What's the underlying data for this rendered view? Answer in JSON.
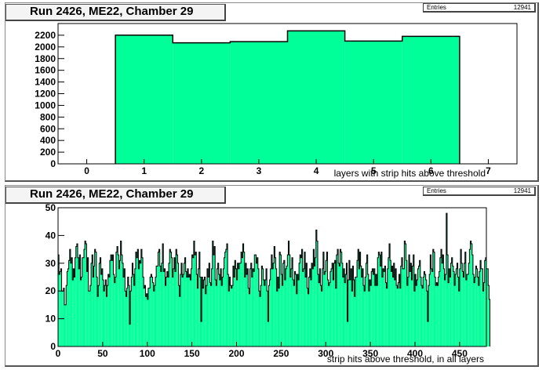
{
  "colors": {
    "fill": "#00ff99",
    "line": "#000000",
    "frame": "#000000"
  },
  "panels": [
    {
      "title": "Run 2426, ME22, Chamber 29",
      "stats": {
        "label": "Entries",
        "value": "12941"
      },
      "chart_data": {
        "type": "bar",
        "xlabel": "layers with strip hits above threshold",
        "xlim": [
          -0.5,
          7.5
        ],
        "ylim": [
          0,
          2400
        ],
        "xticks": [
          0,
          1,
          2,
          3,
          4,
          5,
          6,
          7
        ],
        "yticks": [
          0,
          200,
          400,
          600,
          800,
          1000,
          1200,
          1400,
          1600,
          1800,
          2000,
          2200
        ],
        "categories": [
          1,
          2,
          3,
          4,
          5,
          6
        ],
        "values": [
          2200,
          2070,
          2090,
          2275,
          2100,
          2180
        ],
        "bin_width": 1
      }
    },
    {
      "title": "Run 2426, ME22, Chamber 29",
      "stats": {
        "label": "Entries",
        "value": "12941"
      },
      "chart_data": {
        "type": "bar",
        "xlabel": "strip hits above threshold, in all layers",
        "xlim": [
          0,
          480
        ],
        "ylim": [
          0,
          50
        ],
        "xticks": [
          0,
          50,
          100,
          150,
          200,
          250,
          300,
          350,
          400,
          450
        ],
        "yticks": [
          0,
          10,
          20,
          30,
          40,
          50
        ],
        "bin_width": 1,
        "values": [
          33,
          26,
          27,
          28,
          20,
          20,
          21,
          15,
          15,
          22,
          27,
          28,
          31,
          35,
          30,
          32,
          24,
          28,
          25,
          32,
          36,
          37,
          32,
          28,
          33,
          24,
          25,
          32,
          32,
          35,
          38,
          37,
          27,
          32,
          20,
          20,
          22,
          30,
          33,
          25,
          29,
          35,
          34,
          25,
          18,
          22,
          30,
          32,
          26,
          28,
          24,
          20,
          22,
          24,
          18,
          22,
          26,
          25,
          31,
          33,
          31,
          33,
          26,
          23,
          25,
          34,
          36,
          33,
          28,
          31,
          38,
          33,
          30,
          25,
          28,
          20,
          18,
          21,
          25,
          22,
          8,
          20,
          25,
          30,
          26,
          22,
          28,
          34,
          32,
          35,
          28,
          31,
          30,
          35,
          32,
          25,
          21,
          22,
          18,
          19,
          17,
          21,
          21,
          25,
          26,
          25,
          23,
          20,
          22,
          25,
          29,
          29,
          34,
          35,
          29,
          27,
          30,
          37,
          27,
          28,
          22,
          25,
          27,
          25,
          30,
          35,
          34,
          32,
          25,
          28,
          32,
          27,
          35,
          33,
          30,
          22,
          18,
          26,
          30,
          25,
          26,
          30,
          32,
          27,
          25,
          28,
          25,
          26,
          24,
          28,
          33,
          32,
          38,
          33,
          34,
          26,
          21,
          28,
          34,
          25,
          9,
          25,
          21,
          24,
          25,
          19,
          22,
          28,
          25,
          30,
          23,
          22,
          28,
          38,
          33,
          36,
          24,
          22,
          28,
          30,
          26,
          24,
          28,
          22,
          25,
          28,
          32,
          34,
          35,
          37,
          26,
          20,
          25,
          22,
          21,
          22,
          29,
          25,
          31,
          28,
          24,
          30,
          28,
          30,
          30,
          34,
          32,
          37,
          34,
          25,
          30,
          26,
          28,
          21,
          19,
          28,
          30,
          25,
          28,
          27,
          33,
          33,
          30,
          32,
          28,
          20,
          18,
          22,
          29,
          28,
          24,
          22,
          24,
          28,
          20,
          9,
          22,
          24,
          28,
          33,
          28,
          30,
          36,
          32,
          28,
          20,
          25,
          21,
          34,
          33,
          26,
          22,
          30,
          31,
          24,
          28,
          29,
          33,
          38,
          33,
          25,
          28,
          32,
          24,
          22,
          27,
          26,
          19,
          26,
          24,
          30,
          33,
          32,
          35,
          27,
          28,
          34,
          25,
          30,
          21,
          19,
          25,
          28,
          24,
          30,
          28,
          35,
          29,
          32,
          42,
          38,
          26,
          23,
          28,
          22,
          20,
          28,
          34,
          26,
          27,
          31,
          34,
          24,
          22,
          23,
          27,
          28,
          30,
          24,
          30,
          31,
          21,
          33,
          35,
          30,
          29,
          35,
          34,
          30,
          25,
          28,
          23,
          26,
          30,
          9,
          24,
          31,
          24,
          28,
          20,
          29,
          24,
          18,
          25,
          25,
          31,
          35,
          28,
          34,
          29,
          25,
          28,
          22,
          20,
          25,
          30,
          33,
          26,
          20,
          24,
          22,
          27,
          28,
          26,
          28,
          22,
          26,
          22,
          32,
          34,
          33,
          29,
          34,
          25,
          28,
          27,
          29,
          23,
          21,
          28,
          32,
          37,
          31,
          27,
          29,
          25,
          30,
          24,
          28,
          22,
          21,
          23,
          26,
          21,
          29,
          32,
          28,
          28,
          38,
          37,
          31,
          22,
          25,
          33,
          27,
          30,
          24,
          29,
          33,
          20,
          26,
          22,
          24,
          28,
          29,
          31,
          25,
          22,
          21,
          25,
          27,
          26,
          24,
          20,
          9,
          22,
          26,
          33,
          28,
          27,
          35,
          34,
          25,
          22,
          23,
          22,
          25,
          27,
          32,
          35,
          30,
          33,
          28,
          24,
          26,
          48,
          33,
          23,
          28,
          25,
          30,
          32,
          29,
          27,
          22,
          26,
          28,
          30,
          25,
          20,
          28,
          35,
          30,
          27,
          25,
          30,
          34,
          24,
          26,
          26,
          30,
          35,
          38,
          37,
          33,
          26,
          23,
          25,
          29,
          28,
          25,
          22,
          27,
          31,
          28,
          28,
          20,
          23,
          31,
          32,
          28,
          28,
          22,
          17
        ]
      }
    }
  ]
}
